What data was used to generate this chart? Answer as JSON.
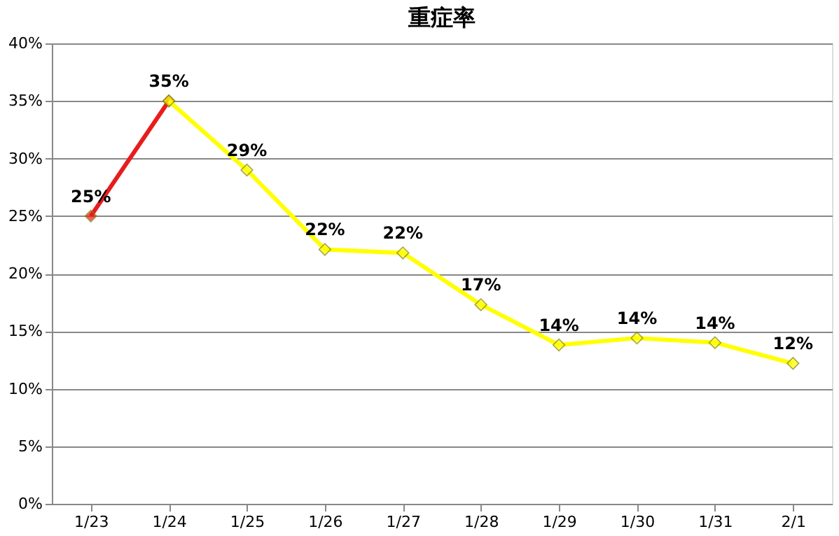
{
  "chart_data": {
    "type": "line",
    "title": "重症率",
    "categories": [
      "1/23",
      "1/24",
      "1/25",
      "1/26",
      "1/27",
      "1/28",
      "1/29",
      "1/30",
      "1/31",
      "2/1"
    ],
    "series": [
      {
        "color": "#e81c1c",
        "values": [
          25,
          35,
          null,
          null,
          null,
          null,
          null,
          null,
          null,
          null
        ],
        "value_labels": [
          "25%",
          null,
          null,
          null,
          null,
          null,
          null,
          null,
          null,
          null
        ]
      },
      {
        "color": "#ffff00",
        "values": [
          null,
          35,
          29,
          22.1,
          21.8,
          17.3,
          13.8,
          14.4,
          14.0,
          12.2
        ],
        "value_labels": [
          null,
          "35%",
          "29%",
          "22%",
          "22%",
          "17%",
          "14%",
          "14%",
          "14%",
          "12%"
        ]
      }
    ],
    "ylim": [
      0,
      40
    ],
    "yticks": [
      {
        "value": 0,
        "label": "0%"
      },
      {
        "value": 5,
        "label": "5%"
      },
      {
        "value": 10,
        "label": "10%"
      },
      {
        "value": 15,
        "label": "15%"
      },
      {
        "value": 20,
        "label": "20%"
      },
      {
        "value": 25,
        "label": "25%"
      },
      {
        "value": 30,
        "label": "30%"
      },
      {
        "value": 35,
        "label": "35%"
      },
      {
        "value": 40,
        "label": "40%"
      }
    ],
    "grid": "y",
    "marker": "diamond",
    "line_style": "solid"
  }
}
